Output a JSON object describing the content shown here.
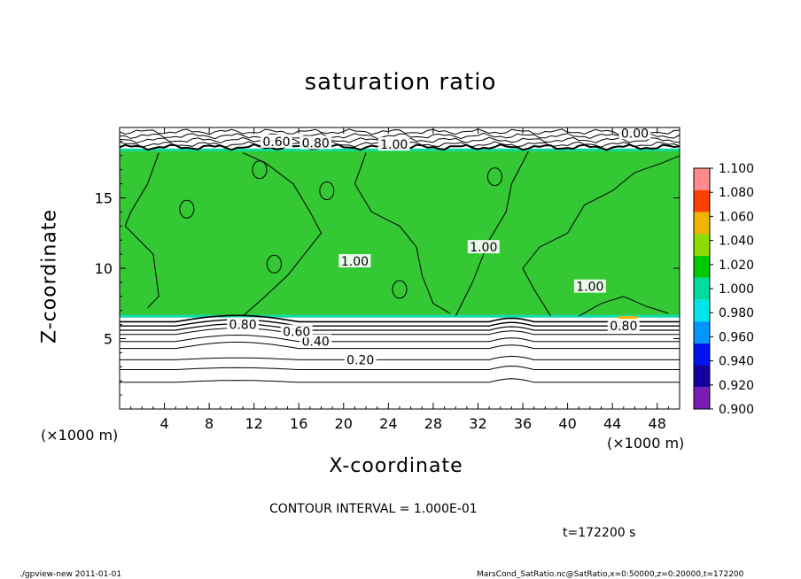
{
  "chart_data": {
    "type": "heatmap",
    "title": "saturation ratio",
    "xlabel": "X-coordinate",
    "ylabel": "Z-coordinate",
    "x_unit": "(×1000 m)",
    "y_unit": "(×1000 m)",
    "xlim": [
      0,
      50
    ],
    "ylim": [
      0,
      20
    ],
    "x_ticks": [
      4,
      8,
      12,
      16,
      20,
      24,
      28,
      32,
      36,
      40,
      44,
      48
    ],
    "y_ticks": [
      5,
      10,
      15
    ],
    "colorbar": {
      "levels": [
        0.9,
        0.92,
        0.94,
        0.96,
        0.98,
        1.0,
        1.02,
        1.04,
        1.06,
        1.08,
        1.1
      ],
      "tick_labels": [
        "0.900",
        "0.920",
        "0.940",
        "0.960",
        "0.980",
        "1.000",
        "1.020",
        "1.040",
        "1.060",
        "1.080",
        "1.100"
      ],
      "colors": [
        "#7c1cb4",
        "#1400a0",
        "#0014f0",
        "#0096ff",
        "#00e6e6",
        "#00dc9c",
        "#00c800",
        "#8cdc00",
        "#f0b400",
        "#ff4000",
        "#ff8c8c"
      ]
    },
    "background_value_color": "#34c834",
    "regions": [
      {
        "description": "saturated layer",
        "z_range": [
          6.5,
          18.5
        ],
        "value": 1.0
      },
      {
        "description": "sub-saturated lower layer",
        "z_range": [
          0,
          6.3
        ],
        "value": "< 0.90"
      },
      {
        "description": "sub-saturated upper layer",
        "z_range": [
          18.6,
          20
        ],
        "value": "< 0.90"
      }
    ],
    "contour_labels": [
      {
        "text": "0.20",
        "x": 21.5,
        "z": 3.5
      },
      {
        "text": "0.40",
        "x": 17.5,
        "z": 4.8
      },
      {
        "text": "0.60",
        "x": 15.8,
        "z": 5.5
      },
      {
        "text": "0.80",
        "x": 11,
        "z": 6.0
      },
      {
        "text": "0.80",
        "x": 45,
        "z": 5.9
      },
      {
        "text": "1.00",
        "x": 21,
        "z": 10.5
      },
      {
        "text": "1.00",
        "x": 32.5,
        "z": 11.5
      },
      {
        "text": "1.00",
        "x": 42,
        "z": 8.7
      },
      {
        "text": "1.00",
        "x": 24.5,
        "z": 18.8
      },
      {
        "text": "0.60",
        "x": 14,
        "z": 19.0
      },
      {
        "text": "0.80",
        "x": 17.5,
        "z": 18.9
      },
      {
        "text": "0.00",
        "x": 46,
        "z": 19.6
      }
    ]
  },
  "footer": {
    "contour_interval": "CONTOUR INTERVAL = 1.000E-01",
    "time": "t=172200 s",
    "left_note": "./gpview-new  2011-01-01",
    "right_note": "MarsCond_SatRatio.nc@SatRatio,x=0:50000,z=0:20000,t=172200"
  },
  "x_unit_left": "(×1000 m)",
  "x_unit_right": "(×1000 m)"
}
